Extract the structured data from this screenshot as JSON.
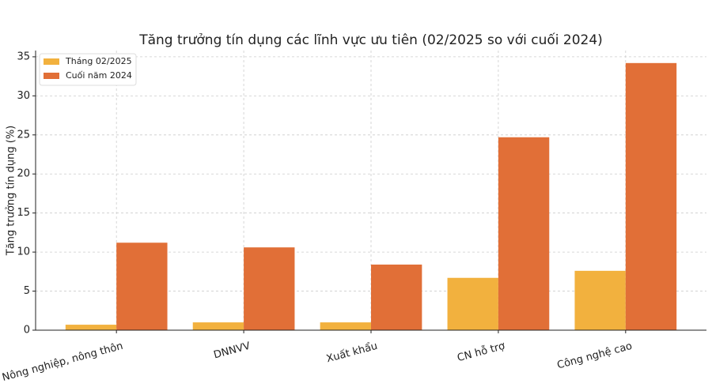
{
  "chart_data": {
    "type": "bar",
    "title": "Tăng trưởng tín dụng các lĩnh vực ưu tiên (02/2025 so với cuối 2024)",
    "y_label": "Tăng trưởng tín dụng (%)",
    "categories": [
      "Nông nghiệp, nông thôn",
      "DNNVV",
      "Xuất khẩu",
      "CN hỗ trợ",
      "Công nghệ cao"
    ],
    "series": [
      {
        "name": "Tháng 02/2025",
        "color": "#f2b13e",
        "values": [
          0.7,
          1.0,
          1.0,
          6.7,
          7.6
        ]
      },
      {
        "name": "Cuối năm 2024",
        "color": "#e16f37",
        "values": [
          11.2,
          10.6,
          8.4,
          24.7,
          34.2
        ]
      }
    ],
    "ylim": [
      0,
      35.8
    ],
    "yticks": [
      0,
      5,
      10,
      15,
      20,
      25,
      30,
      35
    ],
    "grid": true,
    "legend": "upper-left"
  }
}
